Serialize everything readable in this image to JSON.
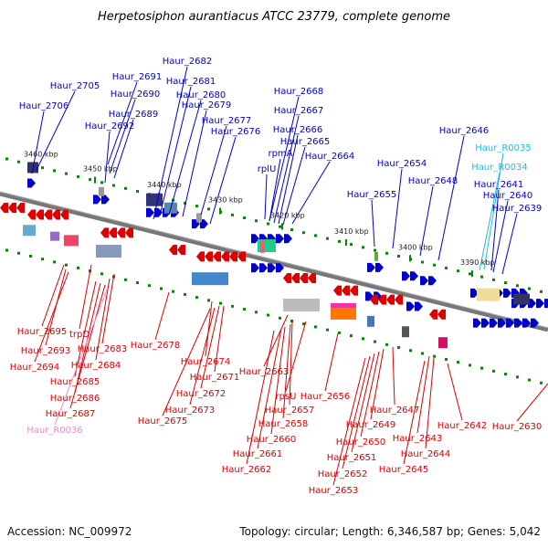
{
  "title": "Herpetosiphon aurantiacus ATCC 23779, complete genome",
  "footer": {
    "accession": "Accession: NC_009972",
    "summary": "Topology: circular; Length: 6,346,587 bp; Genes: 5,042"
  },
  "ticks": [
    "3460 kbp",
    "3450 kbp",
    "3440 kbp",
    "3430 kbp",
    "3420 kbp",
    "3410 kbp",
    "3400 kbp",
    "3390 kbp"
  ],
  "top_labels": [
    "Haur_2682",
    "Haur_2705",
    "Haur_2691",
    "Haur_2681",
    "Haur_2690",
    "Haur_2680",
    "Haur_2706",
    "Haur_2679",
    "Haur_2689",
    "Haur_2677",
    "Haur_2692",
    "Haur_2676",
    "Haur_2668",
    "Haur_2667",
    "Haur_2666",
    "Haur_2665",
    "rpmA",
    "rplU",
    "Haur_2664",
    "Haur_2646",
    "Haur_R0035",
    "Haur_R0034",
    "Haur_2654",
    "Haur_2648",
    "Haur_2641",
    "Haur_2655",
    "Haur_2640",
    "Haur_2639"
  ],
  "bottom_labels": [
    "Haur_2695",
    "trpD",
    "Haur_2693",
    "Haur_2683",
    "Haur_2694",
    "Haur_2684",
    "Haur_2685",
    "Haur_2686",
    "Haur_2687",
    "Haur_R0036",
    "Haur_2678",
    "Haur_2674",
    "Haur_2671",
    "Haur_2672",
    "Haur_2673",
    "Haur_2675",
    "Haur_2663",
    "rpsU",
    "Haur_2656",
    "Haur_2657",
    "Haur_2658",
    "Haur_2660",
    "Haur_2661",
    "Haur_2662",
    "Haur_2647",
    "Haur_2649",
    "Haur_2650",
    "Haur_2651",
    "Haur_2652",
    "Haur_2653",
    "Haur_2643",
    "Haur_2644",
    "Haur_2645",
    "Haur_2642",
    "Haur_2630"
  ],
  "colors": {
    "forward_gene": "#0000cc",
    "reverse_gene": "#dd0000",
    "rna_label": "#22bbdd",
    "pseudo_label": "#ee88cc",
    "backbone": "#777777",
    "tick": "#008800"
  }
}
